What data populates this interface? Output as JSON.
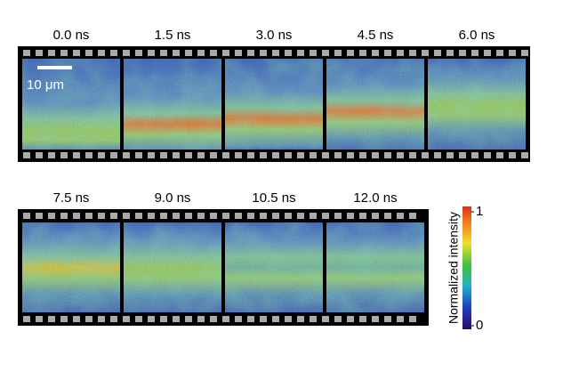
{
  "figure": {
    "rows": [
      {
        "frames": [
          {
            "label": "0.0 ns"
          },
          {
            "label": "1.5 ns"
          },
          {
            "label": "3.0 ns"
          },
          {
            "label": "4.5 ns"
          },
          {
            "label": "6.0 ns"
          }
        ]
      },
      {
        "frames": [
          {
            "label": "7.5 ns"
          },
          {
            "label": "9.0 ns"
          },
          {
            "label": "10.5 ns"
          },
          {
            "label": "12.0 ns"
          }
        ]
      }
    ],
    "scale_bar": "10 μm",
    "colorbar": {
      "label": "Normalized intensity",
      "lim": [
        0,
        1
      ],
      "ticks": [
        0,
        1
      ]
    }
  }
}
